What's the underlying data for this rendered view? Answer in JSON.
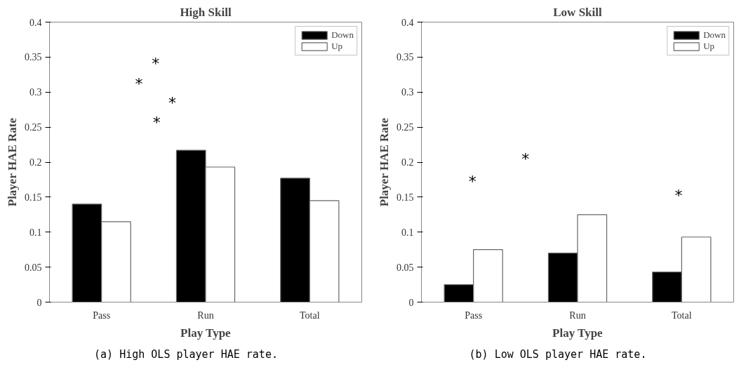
{
  "chart_data": [
    {
      "type": "bar",
      "title": "High Skill",
      "xlabel": "Play Type",
      "ylabel": "Player HAE Rate",
      "categories": [
        "Pass",
        "Run",
        "Total"
      ],
      "series": [
        {
          "name": "Down",
          "color": "#000000",
          "values": [
            0.14,
            0.217,
            0.177
          ]
        },
        {
          "name": "Up",
          "color": "#ffffff",
          "values": [
            0.115,
            0.193,
            0.145
          ]
        }
      ],
      "ylim": [
        0,
        0.4
      ],
      "yticks": [
        0,
        0.05,
        0.1,
        0.15,
        0.2,
        0.25,
        0.3,
        0.35,
        0.4
      ],
      "legend": "top right",
      "annotations": [
        "*",
        "*",
        "*",
        "*",
        "(a) High OLS player HAE rate."
      ]
    },
    {
      "type": "bar",
      "title": "Low Skill",
      "xlabel": "Play Type",
      "ylabel": "Player HAE Rate",
      "categories": [
        "Pass",
        "Run",
        "Total"
      ],
      "series": [
        {
          "name": "Down",
          "color": "#000000",
          "values": [
            0.025,
            0.07,
            0.043
          ]
        },
        {
          "name": "Up",
          "color": "#ffffff",
          "values": [
            0.075,
            0.125,
            0.093
          ]
        }
      ],
      "ylim": [
        0,
        0.4
      ],
      "yticks": [
        0,
        0.05,
        0.1,
        0.15,
        0.2,
        0.25,
        0.3,
        0.35,
        0.4
      ],
      "legend": "top right",
      "annotations": [
        "*",
        "*",
        "*",
        "(b) Low OLS player HAE rate."
      ]
    }
  ]
}
